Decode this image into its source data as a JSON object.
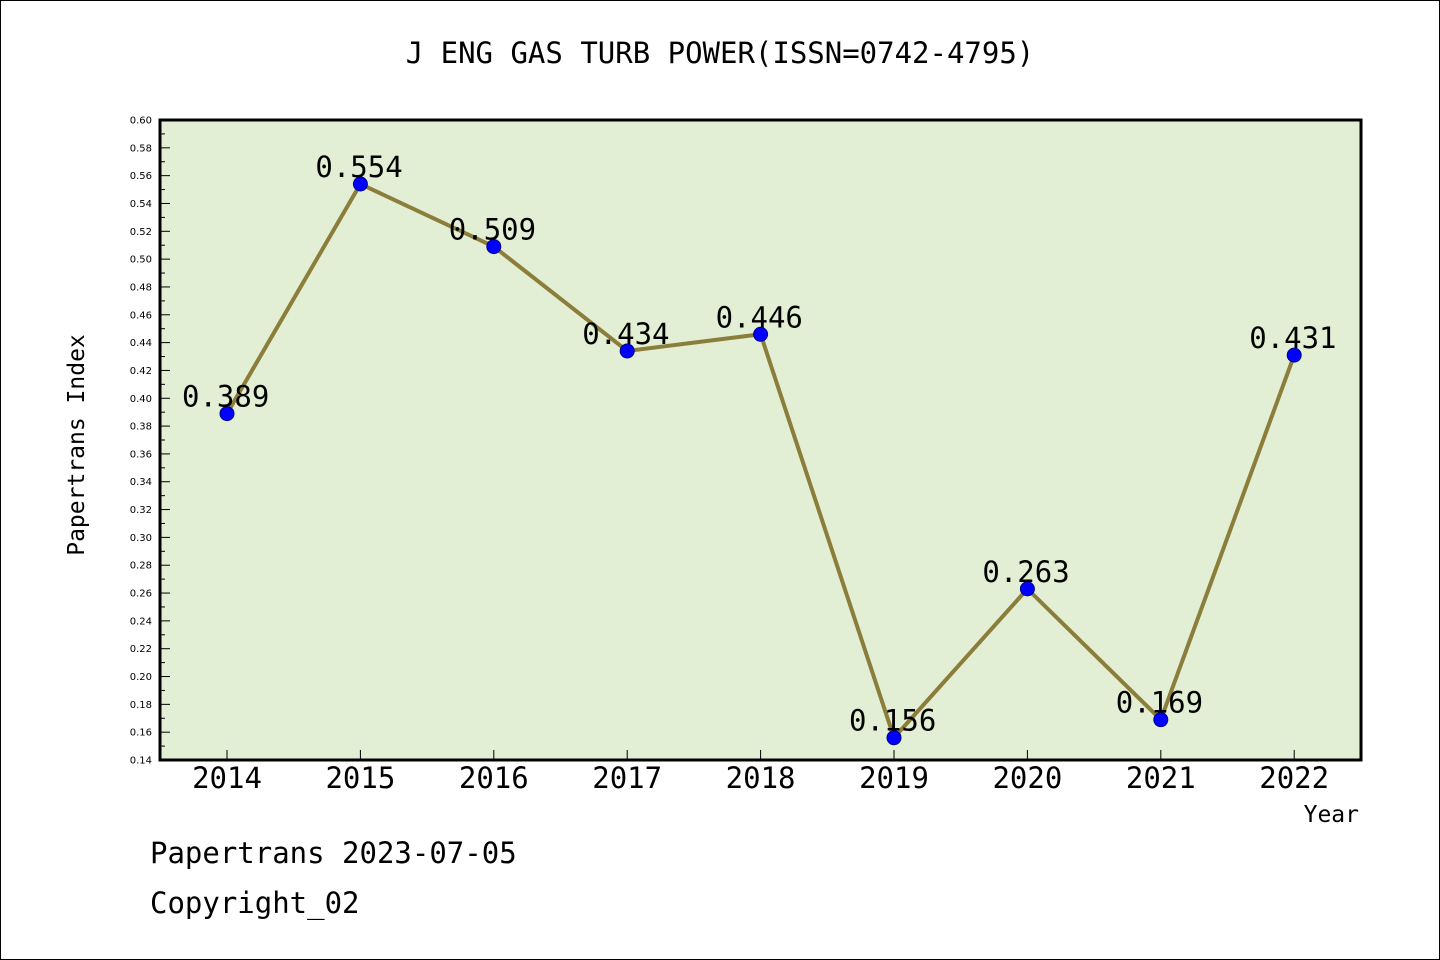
{
  "chart_data": {
    "type": "line",
    "title": "J ENG GAS TURB POWER(ISSN=0742-4795)",
    "xlabel": "Year",
    "ylabel": "Papertrans Index",
    "categories": [
      "2014",
      "2015",
      "2016",
      "2017",
      "2018",
      "2019",
      "2020",
      "2021",
      "2022"
    ],
    "series": [
      {
        "values": [
          0.389,
          0.554,
          0.509,
          0.434,
          0.446,
          0.156,
          0.263,
          0.169,
          0.431
        ],
        "labels": [
          "0.389",
          "0.554",
          "0.509",
          "0.434",
          "0.446",
          "0.156",
          "0.263",
          "0.169",
          "0.431"
        ]
      }
    ],
    "ylim": [
      0.14,
      0.6
    ],
    "yticks": [
      "0.14",
      "0.16",
      "0.18",
      "0.20",
      "0.22",
      "0.24",
      "0.26",
      "0.28",
      "0.30",
      "0.32",
      "0.34",
      "0.36",
      "0.38",
      "0.40",
      "0.42",
      "0.44",
      "0.46",
      "0.48",
      "0.50",
      "0.52",
      "0.54",
      "0.56",
      "0.58",
      "0.60"
    ],
    "grid": false,
    "legend": "none",
    "colors": {
      "plot_background": "#e2efd4",
      "line": "#8b7d3a",
      "marker": "#0000ff"
    }
  },
  "footer": {
    "line1": "Papertrans 2023-07-05",
    "line2": "Copyright_02"
  }
}
